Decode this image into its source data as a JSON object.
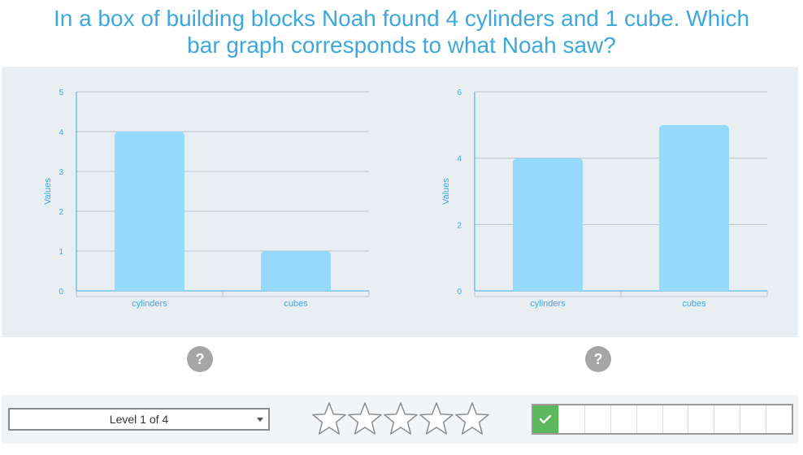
{
  "question": {
    "line1": "In a box of building blocks Noah found 4 cylinders and 1 cube. Which",
    "line2": "bar graph corresponds to what Noah saw?"
  },
  "colors": {
    "accent": "#3ea8dd",
    "bar": "#95dafd",
    "panel": "#e9eef2",
    "help": "#a6a6a6",
    "progress_done": "#5cb85c"
  },
  "chart_data": [
    {
      "type": "bar",
      "categories": [
        "cylinders",
        "cubes"
      ],
      "values": [
        4,
        1
      ],
      "ylabel": "Values",
      "ylim": [
        0,
        5
      ],
      "yticks": [
        0,
        1,
        2,
        3,
        4,
        5
      ],
      "grid": true
    },
    {
      "type": "bar",
      "categories": [
        "cylinders",
        "cubes"
      ],
      "values": [
        4,
        5
      ],
      "ylabel": "Values",
      "ylim": [
        0,
        6
      ],
      "yticks": [
        0,
        2,
        4,
        6
      ],
      "grid": true
    }
  ],
  "help": {
    "label": "?"
  },
  "footer": {
    "level_label": "Level 1 of 4",
    "stars_total": 5,
    "stars_earned": 0,
    "progress_total": 10,
    "progress_done": 1
  }
}
